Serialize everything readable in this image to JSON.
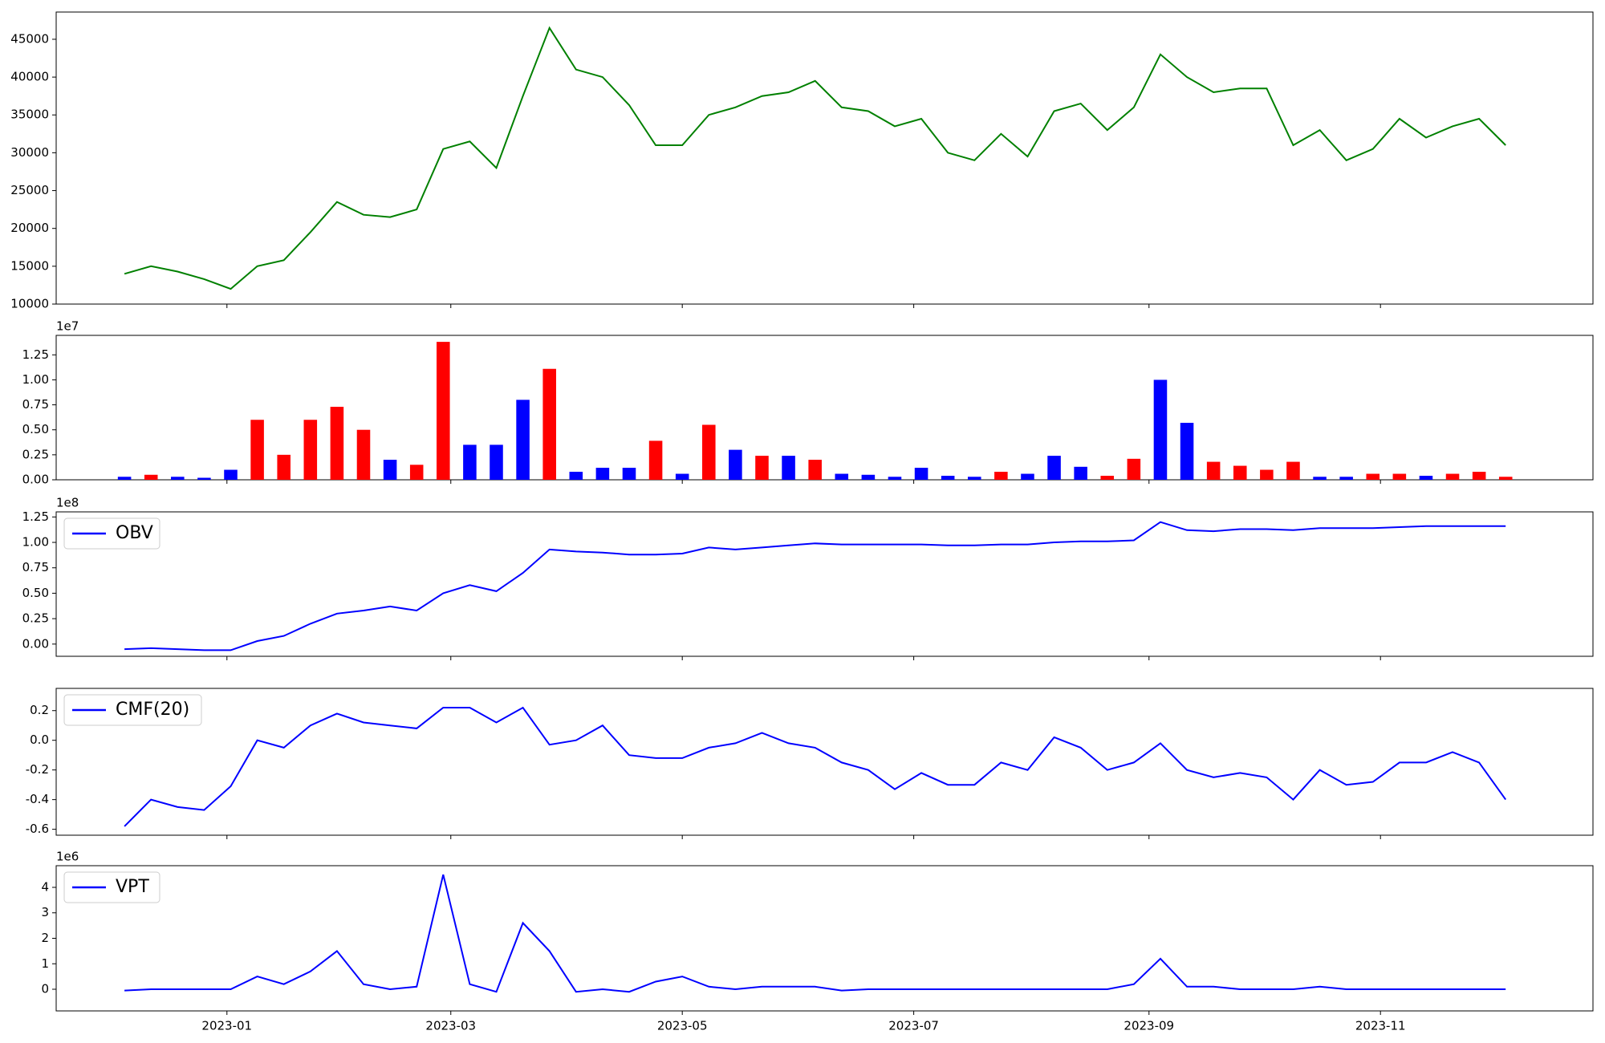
{
  "chart_data": {
    "type": "panels",
    "x": [
      "2022-12-05",
      "2022-12-12",
      "2022-12-19",
      "2022-12-26",
      "2023-01-02",
      "2023-01-09",
      "2023-01-16",
      "2023-01-23",
      "2023-01-30",
      "2023-02-06",
      "2023-02-13",
      "2023-02-20",
      "2023-02-27",
      "2023-03-06",
      "2023-03-13",
      "2023-03-20",
      "2023-03-27",
      "2023-04-03",
      "2023-04-10",
      "2023-04-17",
      "2023-04-24",
      "2023-05-01",
      "2023-05-08",
      "2023-05-15",
      "2023-05-22",
      "2023-05-29",
      "2023-06-05",
      "2023-06-12",
      "2023-06-19",
      "2023-06-26",
      "2023-07-03",
      "2023-07-10",
      "2023-07-17",
      "2023-07-24",
      "2023-07-31",
      "2023-08-07",
      "2023-08-14",
      "2023-08-21",
      "2023-08-28",
      "2023-09-04",
      "2023-09-11",
      "2023-09-18",
      "2023-09-25",
      "2023-10-02",
      "2023-10-09",
      "2023-10-16",
      "2023-10-23",
      "2023-10-30",
      "2023-11-06",
      "2023-11-13",
      "2023-11-20",
      "2023-11-27",
      "2023-12-04"
    ],
    "xlim": [
      "2022-11-17",
      "2023-12-27"
    ],
    "xticks": [
      {
        "value": "2023-01-01",
        "label": "2023-01"
      },
      {
        "value": "2023-03-01",
        "label": "2023-03"
      },
      {
        "value": "2023-05-01",
        "label": "2023-05"
      },
      {
        "value": "2023-07-01",
        "label": "2023-07"
      },
      {
        "value": "2023-09-01",
        "label": "2023-09"
      },
      {
        "value": "2023-11-01",
        "label": "2023-11"
      }
    ],
    "panels": [
      {
        "type": "line",
        "color": "green",
        "values": [
          14000,
          15000,
          14300,
          13300,
          12000,
          15000,
          15800,
          19500,
          23500,
          21800,
          21500,
          22500,
          30500,
          31500,
          28000,
          37500,
          46500,
          41000,
          40000,
          36300,
          31000,
          31000,
          35000,
          36000,
          37500,
          38000,
          39500,
          36000,
          35500,
          33500,
          34500,
          30000,
          29000,
          32500,
          29500,
          35500,
          36500,
          33000,
          36000,
          43000,
          40000,
          38000,
          38500,
          38500,
          31000,
          33000,
          29000,
          30500,
          34500,
          32000,
          33500,
          34500,
          31000
        ],
        "ylim": [
          10000,
          48600
        ],
        "yticks": [
          10000,
          15000,
          20000,
          25000,
          30000,
          35000,
          40000,
          45000
        ]
      },
      {
        "type": "bar",
        "offset_label": "1e7",
        "values": [
          0.03,
          0.05,
          0.03,
          0.02,
          0.1,
          0.6,
          0.25,
          0.6,
          0.73,
          0.5,
          0.2,
          0.15,
          1.38,
          0.35,
          0.35,
          0.8,
          1.11,
          0.08,
          0.12,
          0.12,
          0.39,
          0.06,
          0.55,
          0.3,
          0.24,
          0.24,
          0.2,
          0.06,
          0.05,
          0.03,
          0.12,
          0.04,
          0.03,
          0.08,
          0.06,
          0.24,
          0.13,
          0.04,
          0.21,
          1.0,
          0.57,
          0.18,
          0.14,
          0.1,
          0.18,
          0.03,
          0.03,
          0.06,
          0.06,
          0.04,
          0.06,
          0.08,
          0.03
        ],
        "colors": [
          "blue",
          "red",
          "blue",
          "blue",
          "blue",
          "red",
          "red",
          "red",
          "red",
          "red",
          "blue",
          "red",
          "red",
          "blue",
          "blue",
          "blue",
          "red",
          "blue",
          "blue",
          "blue",
          "red",
          "blue",
          "red",
          "blue",
          "red",
          "blue",
          "red",
          "blue",
          "blue",
          "blue",
          "blue",
          "blue",
          "blue",
          "red",
          "blue",
          "blue",
          "blue",
          "red",
          "red",
          "blue",
          "blue",
          "red",
          "red",
          "red",
          "red",
          "blue",
          "blue",
          "red",
          "red",
          "blue",
          "red",
          "red",
          "red"
        ],
        "ylim": [
          0,
          1.445
        ],
        "yticks": [
          {
            "value": 0,
            "label": "0.00"
          },
          0.25,
          {
            "value": 0.5,
            "label": "0.50"
          },
          0.75,
          {
            "value": 1,
            "label": "1.00"
          },
          1.25
        ]
      },
      {
        "type": "line",
        "offset_label": "1e8",
        "legend": "upper left",
        "series": [
          {
            "name": "OBV",
            "color": "blue",
            "values": [
              -0.05,
              -0.04,
              -0.05,
              -0.06,
              -0.06,
              0.03,
              0.08,
              0.2,
              0.3,
              0.33,
              0.37,
              0.33,
              0.5,
              0.58,
              0.52,
              0.7,
              0.93,
              0.91,
              0.9,
              0.88,
              0.88,
              0.89,
              0.95,
              0.93,
              0.95,
              0.97,
              0.99,
              0.98,
              0.98,
              0.98,
              0.98,
              0.97,
              0.97,
              0.98,
              0.98,
              1.0,
              1.01,
              1.01,
              1.02,
              1.2,
              1.12,
              1.11,
              1.13,
              1.13,
              1.12,
              1.14,
              1.14,
              1.14,
              1.15,
              1.16,
              1.16,
              1.16,
              1.16
            ]
          }
        ],
        "ylim": [
          -0.12,
          1.3
        ],
        "yticks": [
          {
            "value": 0,
            "label": "0.00"
          },
          0.25,
          {
            "value": 0.5,
            "label": "0.50"
          },
          0.75,
          {
            "value": 1,
            "label": "1.00"
          },
          1.25
        ]
      },
      {
        "type": "line",
        "legend": "upper left",
        "series": [
          {
            "name": "CMF(20)",
            "color": "blue",
            "values": [
              -0.58,
              -0.4,
              -0.45,
              -0.47,
              -0.31,
              0.0,
              -0.05,
              0.1,
              0.18,
              0.12,
              0.1,
              0.08,
              0.22,
              0.22,
              0.12,
              0.22,
              -0.03,
              0.0,
              0.1,
              -0.1,
              -0.12,
              -0.12,
              -0.05,
              -0.02,
              0.05,
              -0.02,
              -0.05,
              -0.15,
              -0.2,
              -0.33,
              -0.22,
              -0.3,
              -0.3,
              -0.15,
              -0.2,
              0.02,
              -0.05,
              -0.2,
              -0.15,
              -0.02,
              -0.2,
              -0.25,
              -0.22,
              -0.25,
              -0.4,
              -0.2,
              -0.3,
              -0.28,
              -0.15,
              -0.15,
              -0.08,
              -0.15,
              -0.4
            ]
          }
        ],
        "ylim": [
          -0.64,
          0.35
        ],
        "yticks": [
          -0.6,
          -0.4,
          -0.2,
          {
            "value": 0,
            "label": "0.0"
          },
          0.2
        ]
      },
      {
        "type": "line",
        "offset_label": "1e6",
        "legend": "upper left",
        "series": [
          {
            "name": "VPT",
            "color": "blue",
            "values": [
              -0.05,
              0,
              0,
              0,
              0,
              0.5,
              0.2,
              0.7,
              1.5,
              0.2,
              0,
              0.1,
              4.5,
              0.2,
              -0.1,
              2.6,
              1.5,
              -0.1,
              0,
              -0.1,
              0.3,
              0.5,
              0.1,
              0,
              0.1,
              0.1,
              0.1,
              -0.05,
              0,
              0,
              0,
              0,
              0,
              0,
              0,
              0,
              0,
              0,
              0.2,
              1.2,
              0.1,
              0.1,
              0,
              0,
              0,
              0.1,
              0,
              0,
              0,
              0,
              0,
              0,
              0
            ]
          }
        ],
        "ylim": [
          -0.85,
          4.85
        ],
        "yticks": [
          0,
          1,
          2,
          3,
          4
        ]
      }
    ]
  }
}
